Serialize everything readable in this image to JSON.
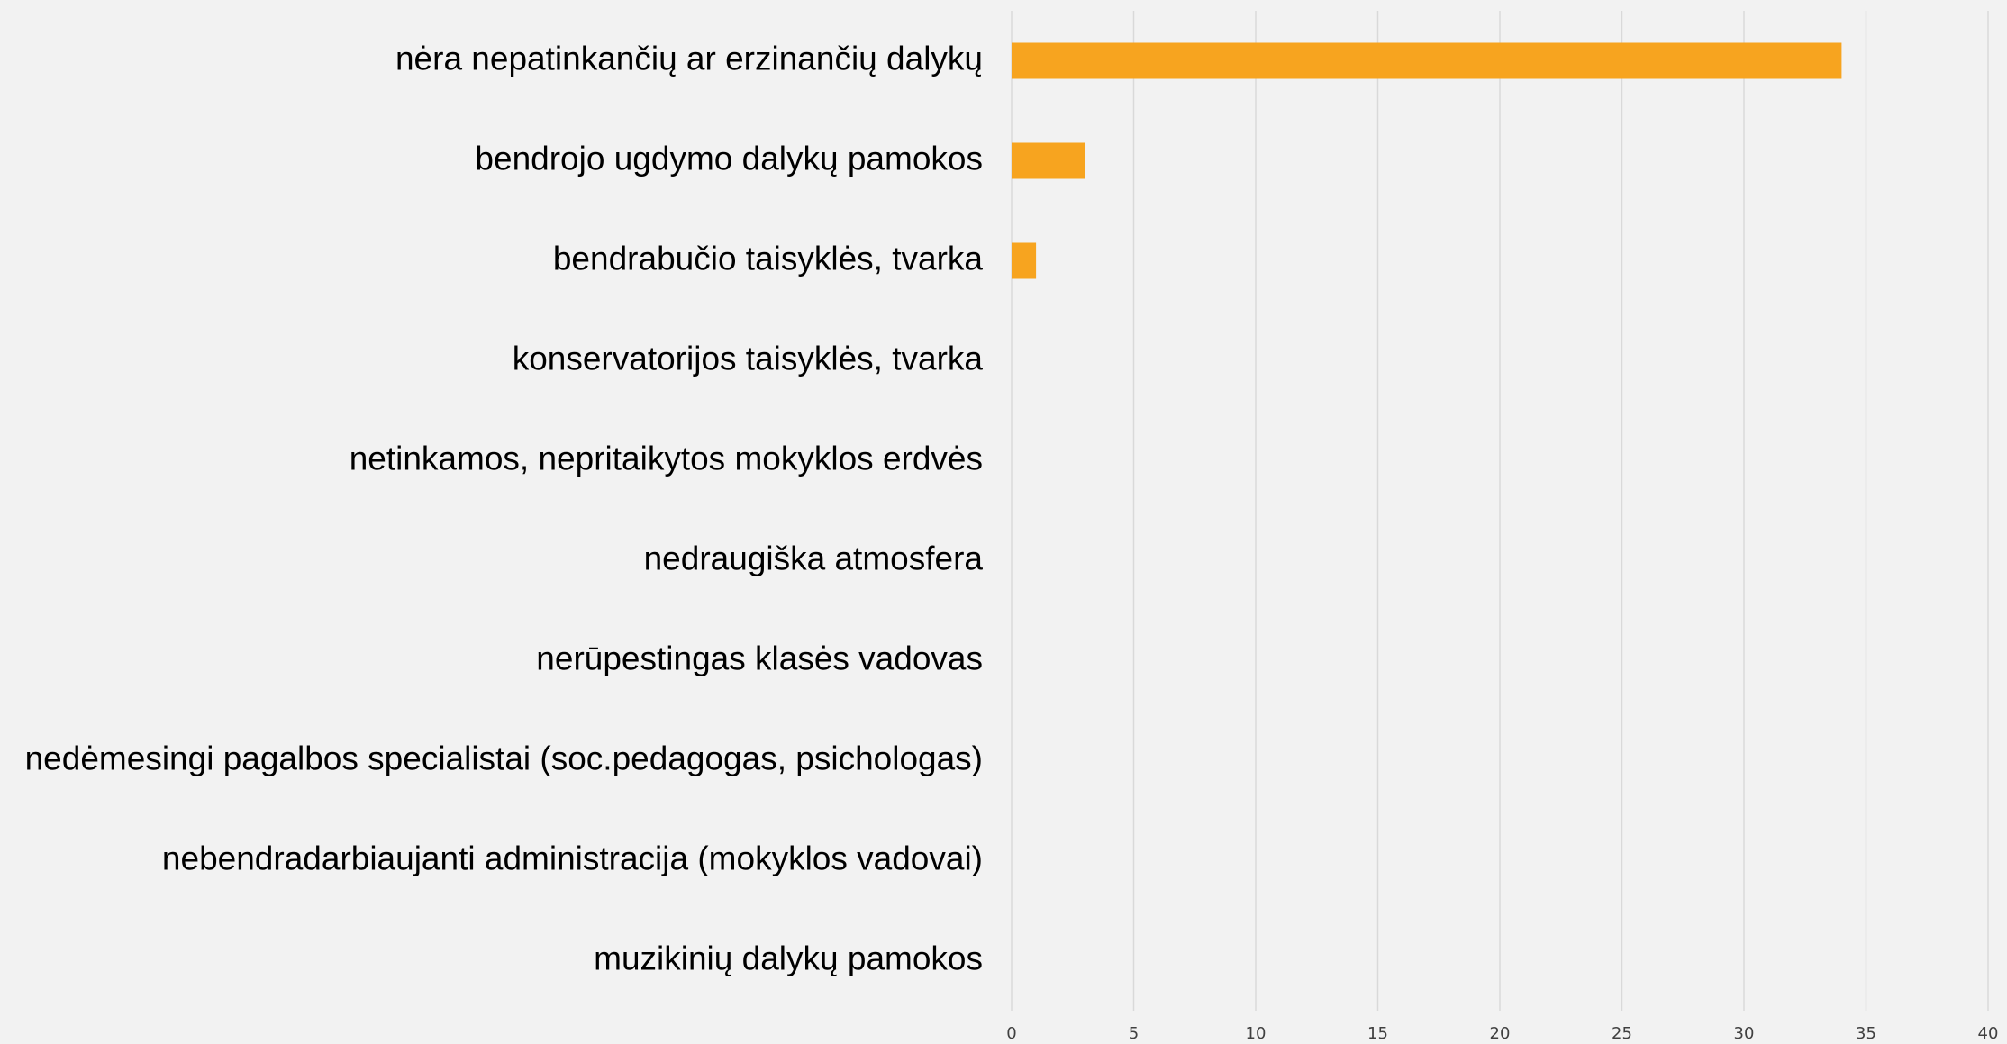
{
  "chart_data": {
    "type": "bar",
    "orientation": "horizontal",
    "categories": [
      "nėra nepatinkančių ar erzinančių dalykų",
      "bendrojo ugdymo dalykų pamokos",
      "bendrabučio taisyklės, tvarka",
      "konservatorijos taisyklės, tvarka",
      "netinkamos, nepritaikytos mokyklos erdvės",
      "nedraugiška atmosfera",
      "nerūpestingas klasės vadovas",
      "nedėmesingi pagalbos specialistai (soc.pedagogas, psichologas)",
      "nebendradarbiaujanti administracija (mokyklos vadovai)",
      "muzikinių dalykų pamokos"
    ],
    "values": [
      34,
      3,
      1,
      0,
      0,
      0,
      0,
      0,
      0,
      0
    ],
    "color": "#f7a41f",
    "xlim": [
      0,
      40
    ],
    "xticks": [
      0,
      5,
      10,
      15,
      20,
      25,
      30,
      35,
      40
    ],
    "grid": true
  }
}
